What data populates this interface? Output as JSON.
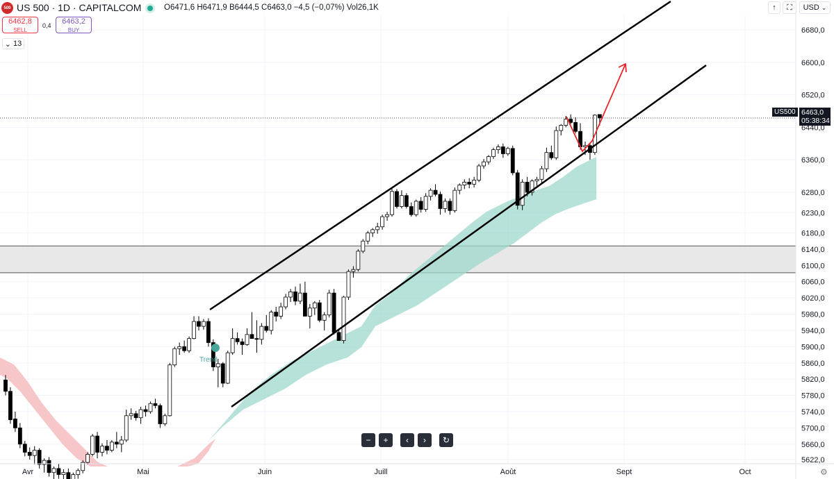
{
  "header": {
    "logo_text": "500",
    "title": "US 500 · 1D · CAPITALCOM",
    "ohlc": "O6471,6  H6471,9  B6444,5  C6463,0  −4,5 (−0,07%)  Vol26,1K",
    "sell_price": "6462,8",
    "sell_label": "SELL",
    "spread": "0,4",
    "buy_price": "6463,2",
    "buy_label": "BUY",
    "indicator_count": "13",
    "currency": "USD"
  },
  "price_flag": {
    "symbol": "US500",
    "price": "6463,0",
    "countdown": "05:38:34"
  },
  "annotation_trend": "Trend",
  "colors": {
    "up_candle": "#ffffff",
    "down_candle": "#000000",
    "cloud_green": "#9ed8cc",
    "cloud_red": "#f6bcbf",
    "zone_gray": "#e6e6e6",
    "arrow_red": "#e8262b",
    "channel": "#000000"
  },
  "icons": [
    "arrow-up-icon",
    "fullscreen-icon",
    "zoom-out-icon",
    "zoom-in-icon",
    "scroll-left-icon",
    "scroll-right-icon",
    "reset-icon",
    "settings-icon",
    "chevron-down-icon"
  ],
  "chart_data": {
    "type": "candlestick",
    "title": "US 500 · 1D · CAPITALCOM",
    "ylim": [
      5600,
      6720
    ],
    "y_ticks": [
      "6680,0",
      "6600,0",
      "6520,0",
      "6440,0",
      "6360,0",
      "6280,0",
      "6230,0",
      "6180,0",
      "6140,0",
      "6100,0",
      "6060,0",
      "6020,0",
      "5980,0",
      "5940,0",
      "5900,0",
      "5860,0",
      "5820,0",
      "5780,0",
      "5740,0",
      "5700,0",
      "5660,0",
      "5622,0"
    ],
    "x_ticks": [
      "Avr",
      "Mai",
      "Juin",
      "Juill",
      "Août",
      "Sept",
      "Oct"
    ],
    "current_price": 6463.0,
    "support_zone": [
      6082,
      6148
    ],
    "candles_ohlc": [
      [
        5818,
        5830,
        5780,
        5790
      ],
      [
        5790,
        5800,
        5710,
        5720
      ],
      [
        5722,
        5740,
        5690,
        5700
      ],
      [
        5700,
        5712,
        5650,
        5660
      ],
      [
        5660,
        5668,
        5630,
        5640
      ],
      [
        5640,
        5652,
        5622,
        5632
      ],
      [
        5632,
        5655,
        5610,
        5645
      ],
      [
        5645,
        5650,
        5600,
        5610
      ],
      [
        5610,
        5625,
        5590,
        5620
      ],
      [
        5620,
        5628,
        5580,
        5590
      ],
      [
        5590,
        5605,
        5570,
        5600
      ],
      [
        5600,
        5612,
        5575,
        5585
      ],
      [
        5585,
        5598,
        5560,
        5590
      ],
      [
        5590,
        5600,
        5562,
        5570
      ],
      [
        5570,
        5590,
        5560,
        5585
      ],
      [
        5585,
        5600,
        5575,
        5595
      ],
      [
        5595,
        5620,
        5588,
        5615
      ],
      [
        5615,
        5640,
        5610,
        5635
      ],
      [
        5635,
        5685,
        5630,
        5680
      ],
      [
        5680,
        5690,
        5625,
        5640
      ],
      [
        5640,
        5662,
        5630,
        5655
      ],
      [
        5655,
        5670,
        5635,
        5645
      ],
      [
        5645,
        5670,
        5640,
        5665
      ],
      [
        5665,
        5690,
        5650,
        5660
      ],
      [
        5660,
        5680,
        5640,
        5670
      ],
      [
        5670,
        5745,
        5665,
        5730
      ],
      [
        5730,
        5748,
        5720,
        5735
      ],
      [
        5735,
        5742,
        5718,
        5725
      ],
      [
        5725,
        5752,
        5710,
        5745
      ],
      [
        5745,
        5755,
        5728,
        5740
      ],
      [
        5740,
        5765,
        5735,
        5760
      ],
      [
        5760,
        5772,
        5748,
        5755
      ],
      [
        5755,
        5760,
        5700,
        5710
      ],
      [
        5710,
        5735,
        5705,
        5730
      ],
      [
        5730,
        5860,
        5728,
        5855
      ],
      [
        5855,
        5900,
        5850,
        5895
      ],
      [
        5895,
        5910,
        5880,
        5900
      ],
      [
        5900,
        5915,
        5885,
        5890
      ],
      [
        5890,
        5925,
        5885,
        5920
      ],
      [
        5920,
        5975,
        5918,
        5962
      ],
      [
        5962,
        5975,
        5940,
        5950
      ],
      [
        5950,
        5968,
        5942,
        5962
      ],
      [
        5962,
        5970,
        5900,
        5910
      ],
      [
        5910,
        5918,
        5840,
        5850
      ],
      [
        5850,
        5870,
        5800,
        5858
      ],
      [
        5858,
        5862,
        5800,
        5810
      ],
      [
        5810,
        5890,
        5808,
        5885
      ],
      [
        5885,
        5945,
        5880,
        5920
      ],
      [
        5920,
        5935,
        5905,
        5912
      ],
      [
        5912,
        5920,
        5880,
        5905
      ],
      [
        5905,
        5945,
        5902,
        5930
      ],
      [
        5930,
        5985,
        5920,
        5920
      ],
      [
        5920,
        5965,
        5885,
        5918
      ],
      [
        5918,
        5958,
        5905,
        5950
      ],
      [
        5950,
        5978,
        5935,
        5940
      ],
      [
        5940,
        5990,
        5930,
        5985
      ],
      [
        5985,
        5998,
        5962,
        5975
      ],
      [
        5975,
        6008,
        5968,
        5998
      ],
      [
        5998,
        6030,
        5992,
        6022
      ],
      [
        6022,
        6042,
        6010,
        6035
      ],
      [
        6035,
        6048,
        6002,
        6012
      ],
      [
        6012,
        6055,
        6005,
        6032
      ],
      [
        6032,
        6060,
        6020,
        5975
      ],
      [
        5975,
        6005,
        5945,
        5995
      ],
      [
        5995,
        6012,
        5978,
        6008
      ],
      [
        6008,
        6015,
        5960,
        5965
      ],
      [
        5965,
        5985,
        5940,
        5978
      ],
      [
        5978,
        6040,
        5972,
        6032
      ],
      [
        6032,
        6042,
        5930,
        5935
      ],
      [
        5935,
        5940,
        5915,
        5915
      ],
      [
        5915,
        6025,
        5908,
        6022
      ],
      [
        6022,
        6090,
        6015,
        6085
      ],
      [
        6085,
        6098,
        6070,
        6090
      ],
      [
        6090,
        6140,
        6085,
        6135
      ],
      [
        6135,
        6165,
        6130,
        6160
      ],
      [
        6160,
        6185,
        6152,
        6180
      ],
      [
        6180,
        6192,
        6170,
        6188
      ],
      [
        6188,
        6205,
        6178,
        6195
      ],
      [
        6195,
        6225,
        6188,
        6220
      ],
      [
        6220,
        6232,
        6210,
        6225
      ],
      [
        6225,
        6290,
        6220,
        6282
      ],
      [
        6282,
        6288,
        6240,
        6245
      ],
      [
        6245,
        6285,
        6240,
        6272
      ],
      [
        6272,
        6278,
        6240,
        6245
      ],
      [
        6245,
        6255,
        6220,
        6225
      ],
      [
        6225,
        6262,
        6220,
        6258
      ],
      [
        6258,
        6268,
        6230,
        6238
      ],
      [
        6238,
        6278,
        6232,
        6270
      ],
      [
        6270,
        6290,
        6260,
        6285
      ],
      [
        6285,
        6300,
        6270,
        6275
      ],
      [
        6275,
        6282,
        6225,
        6240
      ],
      [
        6240,
        6265,
        6230,
        6258
      ],
      [
        6258,
        6265,
        6225,
        6235
      ],
      [
        6235,
        6292,
        6230,
        6285
      ],
      [
        6285,
        6302,
        6275,
        6298
      ],
      [
        6298,
        6312,
        6288,
        6305
      ],
      [
        6305,
        6315,
        6290,
        6300
      ],
      [
        6300,
        6318,
        6292,
        6310
      ],
      [
        6310,
        6350,
        6305,
        6345
      ],
      [
        6345,
        6362,
        6338,
        6355
      ],
      [
        6355,
        6372,
        6348,
        6368
      ],
      [
        6368,
        6390,
        6362,
        6385
      ],
      [
        6385,
        6398,
        6375,
        6392
      ],
      [
        6392,
        6400,
        6365,
        6375
      ],
      [
        6375,
        6392,
        6370,
        6388
      ],
      [
        6388,
        6395,
        6322,
        6328
      ],
      [
        6328,
        6335,
        6238,
        6248
      ],
      [
        6248,
        6312,
        6236,
        6305
      ],
      [
        6305,
        6318,
        6270,
        6280
      ],
      [
        6280,
        6312,
        6272,
        6308
      ],
      [
        6308,
        6318,
        6296,
        6312
      ],
      [
        6312,
        6345,
        6302,
        6338
      ],
      [
        6338,
        6390,
        6330,
        6378
      ],
      [
        6378,
        6395,
        6360,
        6365
      ],
      [
        6365,
        6442,
        6360,
        6432
      ],
      [
        6432,
        6448,
        6420,
        6445
      ],
      [
        6445,
        6468,
        6440,
        6460
      ],
      [
        6460,
        6472,
        6448,
        6452
      ],
      [
        6452,
        6465,
        6425,
        6430
      ],
      [
        6430,
        6450,
        6385,
        6392
      ],
      [
        6392,
        6405,
        6372,
        6395
      ],
      [
        6395,
        6400,
        6360,
        6378
      ],
      [
        6378,
        6472,
        6372,
        6470
      ],
      [
        6471.6,
        6471.9,
        6444.5,
        6463.0
      ]
    ]
  }
}
